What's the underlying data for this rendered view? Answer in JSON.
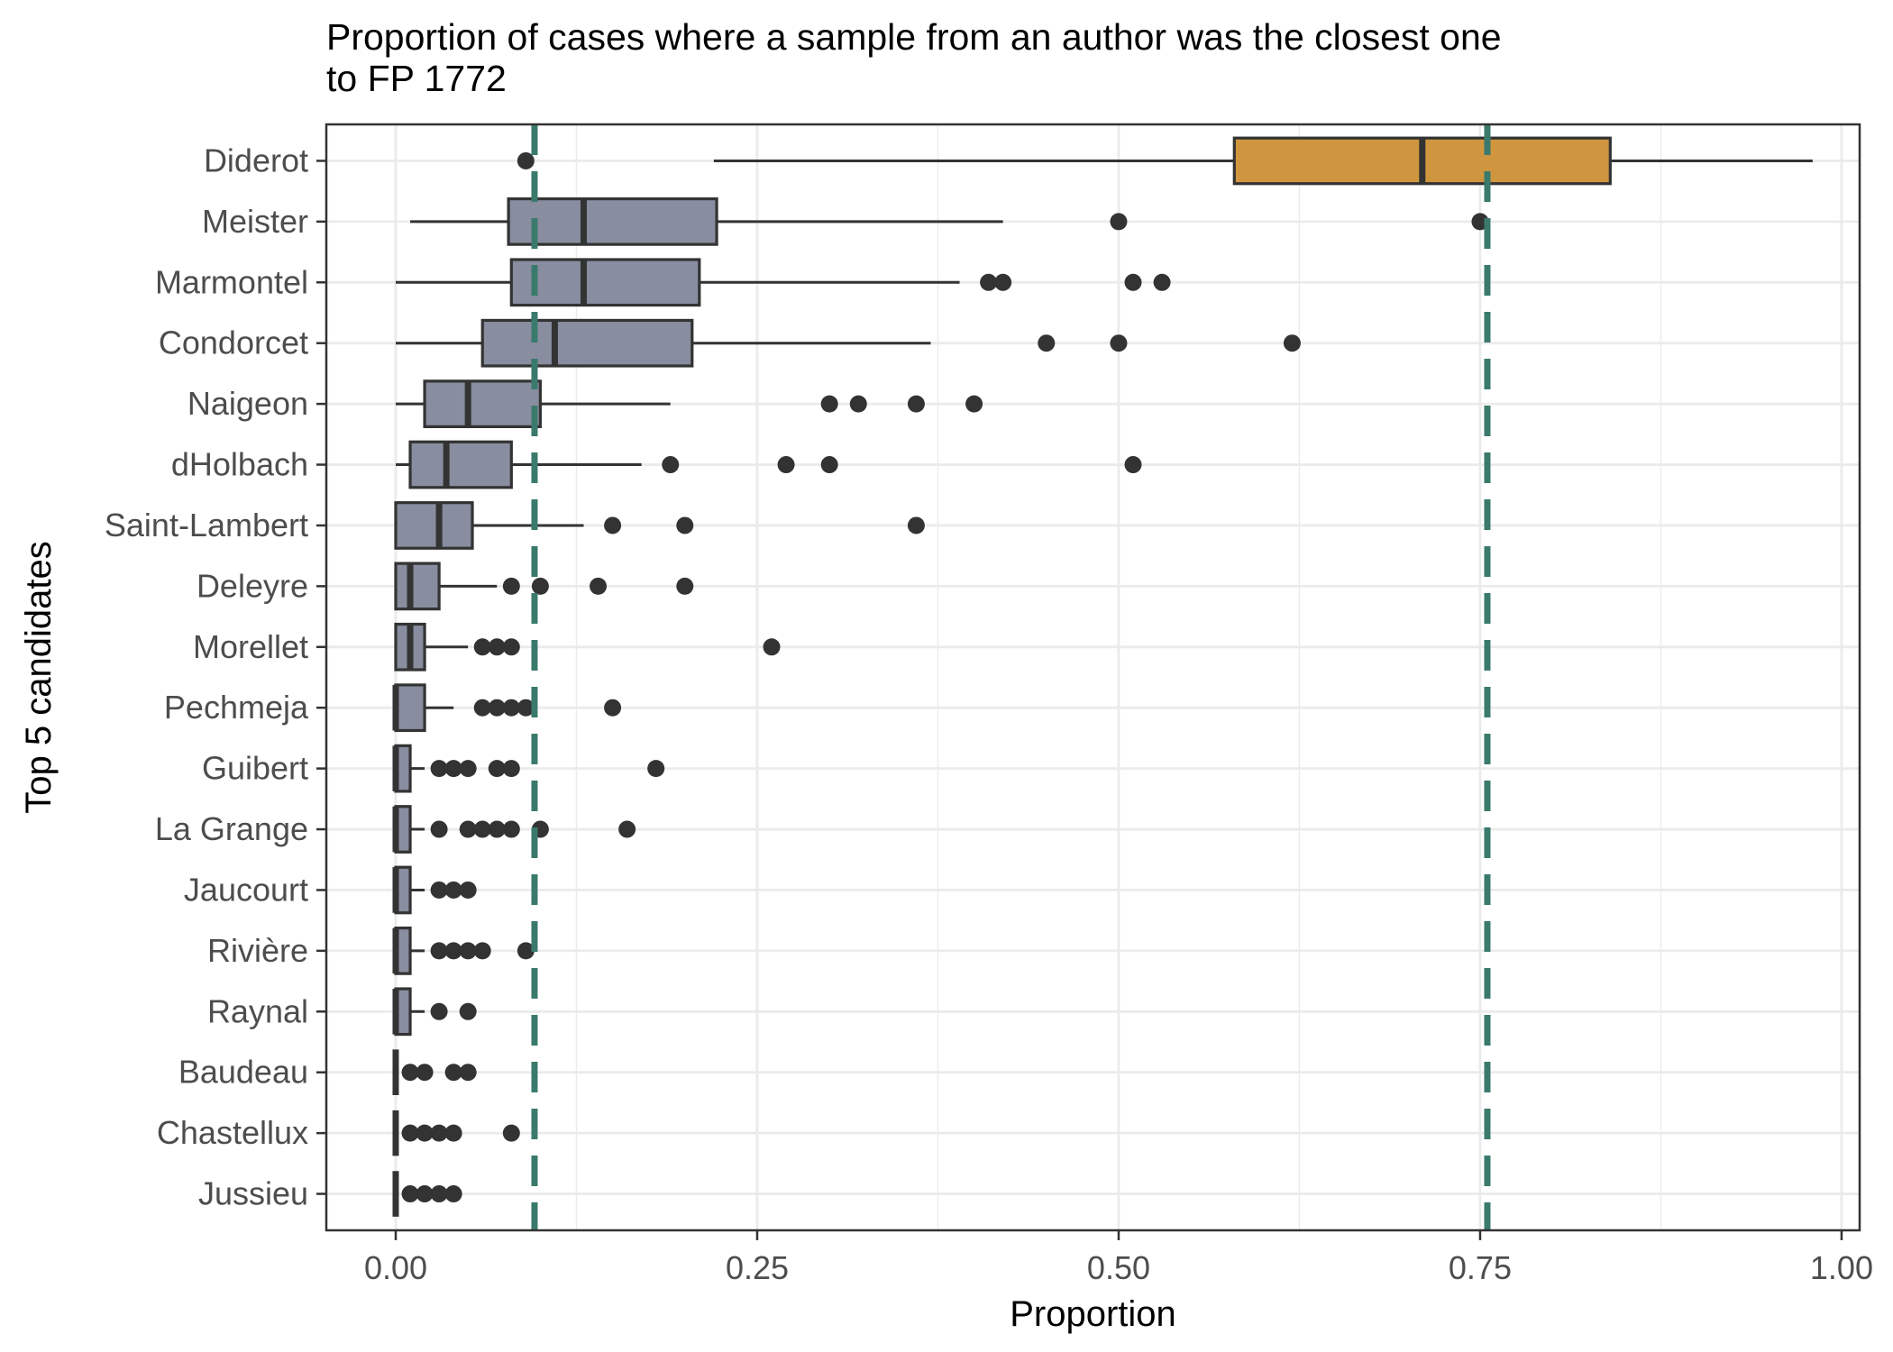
{
  "chart_data": {
    "type": "boxplot",
    "orientation": "horizontal",
    "title_lines": [
      "Proportion of cases where a sample from an author was the closest one",
      "to FP 1772"
    ],
    "xlabel": "Proportion",
    "ylabel": "Top 5 candidates",
    "xlim": [
      -0.048,
      1.0125
    ],
    "xticks": [
      0.0,
      0.25,
      0.5,
      0.75,
      1.0
    ],
    "xtick_labels": [
      "0.00",
      "0.25",
      "0.50",
      "0.75",
      "1.00"
    ],
    "grid": true,
    "reference_lines": [
      0.096,
      0.755
    ],
    "colors": {
      "highlight_box": "#D0963F",
      "default_box": "#888D9F",
      "reference_line": "#3A7A6C",
      "outline": "#333333",
      "grid": "#EBEBEB"
    },
    "categories": [
      "Diderot",
      "Meister",
      "Marmontel",
      "Condorcet",
      "Naigeon",
      "dHolbach",
      "Saint-Lambert",
      "Deleyre",
      "Morellet",
      "Pechmeja",
      "Guibert",
      "La Grange",
      "Jaucourt",
      "Rivière",
      "Raynal",
      "Baudeau",
      "Chastellux",
      "Jussieu"
    ],
    "boxes": [
      {
        "name": "Diderot",
        "q1": 0.58,
        "median": 0.71,
        "q3": 0.84,
        "lo": 0.22,
        "hi": 0.98,
        "outliers": [
          0.09
        ],
        "highlight": true
      },
      {
        "name": "Meister",
        "q1": 0.078,
        "median": 0.13,
        "q3": 0.222,
        "lo": 0.01,
        "hi": 0.42,
        "outliers": [
          0.5,
          0.75
        ]
      },
      {
        "name": "Marmontel",
        "q1": 0.08,
        "median": 0.13,
        "q3": 0.21,
        "lo": 0.0,
        "hi": 0.39,
        "outliers": [
          0.41,
          0.42,
          0.51,
          0.53
        ]
      },
      {
        "name": "Condorcet",
        "q1": 0.06,
        "median": 0.11,
        "q3": 0.205,
        "lo": 0.0,
        "hi": 0.37,
        "outliers": [
          0.45,
          0.5,
          0.62
        ]
      },
      {
        "name": "Naigeon",
        "q1": 0.02,
        "median": 0.05,
        "q3": 0.1,
        "lo": 0.0,
        "hi": 0.19,
        "outliers": [
          0.3,
          0.32,
          0.36,
          0.4
        ]
      },
      {
        "name": "dHolbach",
        "q1": 0.01,
        "median": 0.035,
        "q3": 0.08,
        "lo": 0.0,
        "hi": 0.17,
        "outliers": [
          0.19,
          0.27,
          0.3,
          0.51
        ]
      },
      {
        "name": "Saint-Lambert",
        "q1": 0.0,
        "median": 0.03,
        "q3": 0.053,
        "lo": 0.0,
        "hi": 0.13,
        "outliers": [
          0.15,
          0.2,
          0.36
        ]
      },
      {
        "name": "Deleyre",
        "q1": 0.0,
        "median": 0.01,
        "q3": 0.03,
        "lo": 0.0,
        "hi": 0.07,
        "outliers": [
          0.08,
          0.1,
          0.14,
          0.2
        ]
      },
      {
        "name": "Morellet",
        "q1": 0.0,
        "median": 0.01,
        "q3": 0.02,
        "lo": 0.0,
        "hi": 0.05,
        "outliers": [
          0.06,
          0.07,
          0.08,
          0.26
        ]
      },
      {
        "name": "Pechmeja",
        "q1": 0.0,
        "median": 0.0,
        "q3": 0.02,
        "lo": 0.0,
        "hi": 0.04,
        "outliers": [
          0.06,
          0.07,
          0.08,
          0.09,
          0.15
        ]
      },
      {
        "name": "Guibert",
        "q1": 0.0,
        "median": 0.0,
        "q3": 0.01,
        "lo": 0.0,
        "hi": 0.02,
        "outliers": [
          0.03,
          0.04,
          0.05,
          0.07,
          0.08,
          0.18
        ]
      },
      {
        "name": "La Grange",
        "q1": 0.0,
        "median": 0.0,
        "q3": 0.01,
        "lo": 0.0,
        "hi": 0.02,
        "outliers": [
          0.03,
          0.05,
          0.06,
          0.07,
          0.08,
          0.1,
          0.16
        ]
      },
      {
        "name": "Jaucourt",
        "q1": 0.0,
        "median": 0.0,
        "q3": 0.01,
        "lo": 0.0,
        "hi": 0.02,
        "outliers": [
          0.03,
          0.04,
          0.05
        ]
      },
      {
        "name": "Rivière",
        "q1": 0.0,
        "median": 0.0,
        "q3": 0.01,
        "lo": 0.0,
        "hi": 0.02,
        "outliers": [
          0.03,
          0.04,
          0.05,
          0.06,
          0.09
        ]
      },
      {
        "name": "Raynal",
        "q1": 0.0,
        "median": 0.0,
        "q3": 0.01,
        "lo": 0.0,
        "hi": 0.02,
        "outliers": [
          0.03,
          0.05
        ]
      },
      {
        "name": "Baudeau",
        "q1": 0.0,
        "median": 0.0,
        "q3": 0.0,
        "lo": 0.0,
        "hi": 0.0,
        "outliers": [
          0.01,
          0.02,
          0.04,
          0.05
        ]
      },
      {
        "name": "Chastellux",
        "q1": 0.0,
        "median": 0.0,
        "q3": 0.0,
        "lo": 0.0,
        "hi": 0.0,
        "outliers": [
          0.01,
          0.02,
          0.03,
          0.04,
          0.08
        ]
      },
      {
        "name": "Jussieu",
        "q1": 0.0,
        "median": 0.0,
        "q3": 0.0,
        "lo": 0.0,
        "hi": 0.0,
        "outliers": [
          0.01,
          0.02,
          0.03,
          0.04
        ]
      }
    ]
  }
}
